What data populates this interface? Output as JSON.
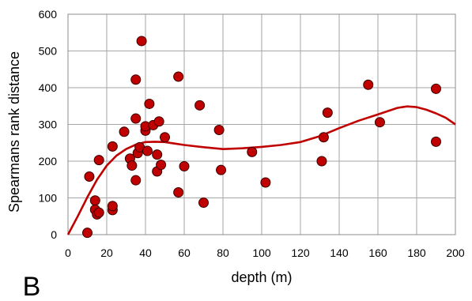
{
  "panel_label": "B",
  "chart_data": {
    "type": "scatter",
    "xlabel": "depth (m)",
    "ylabel": "Spearmans rank distance",
    "xlim": [
      0,
      200
    ],
    "ylim": [
      0,
      600
    ],
    "x_ticks": [
      0,
      20,
      40,
      60,
      80,
      100,
      120,
      140,
      160,
      180,
      200
    ],
    "y_ticks": [
      0,
      100,
      200,
      300,
      400,
      500,
      600
    ],
    "grid": true,
    "legend": "none",
    "marker_color": "#c00000",
    "marker_edge_color": "#3a0000",
    "line_color": "#c00000",
    "points": [
      [
        10,
        5
      ],
      [
        11,
        158
      ],
      [
        14,
        93
      ],
      [
        14,
        68
      ],
      [
        15,
        55
      ],
      [
        16,
        60
      ],
      [
        16,
        203
      ],
      [
        23,
        240
      ],
      [
        23,
        67
      ],
      [
        23,
        78
      ],
      [
        29,
        280
      ],
      [
        32,
        207
      ],
      [
        33,
        188
      ],
      [
        35,
        422
      ],
      [
        35,
        148
      ],
      [
        35,
        316
      ],
      [
        36,
        222
      ],
      [
        37,
        238
      ],
      [
        38,
        527
      ],
      [
        40,
        283
      ],
      [
        40,
        295
      ],
      [
        41,
        228
      ],
      [
        42,
        356
      ],
      [
        44,
        298
      ],
      [
        46,
        218
      ],
      [
        46,
        172
      ],
      [
        47,
        308
      ],
      [
        48,
        190
      ],
      [
        50,
        265
      ],
      [
        57,
        430
      ],
      [
        57,
        115
      ],
      [
        60,
        186
      ],
      [
        68,
        352
      ],
      [
        70,
        87
      ],
      [
        78,
        285
      ],
      [
        79,
        176
      ],
      [
        95,
        225
      ],
      [
        102,
        142
      ],
      [
        131,
        200
      ],
      [
        132,
        265
      ],
      [
        134,
        332
      ],
      [
        155,
        408
      ],
      [
        161,
        306
      ],
      [
        190,
        397
      ],
      [
        190,
        253
      ]
    ],
    "trend_line": {
      "x": [
        0,
        5,
        10,
        15,
        20,
        25,
        30,
        35,
        40,
        45,
        50,
        55,
        60,
        70,
        80,
        90,
        100,
        110,
        120,
        130,
        140,
        150,
        160,
        170,
        175,
        180,
        185,
        190,
        195,
        200
      ],
      "y": [
        0,
        50,
        102,
        150,
        188,
        215,
        233,
        245,
        252,
        253,
        252,
        248,
        244,
        238,
        233,
        235,
        239,
        244,
        252,
        268,
        290,
        310,
        327,
        345,
        349,
        347,
        340,
        330,
        318,
        300
      ]
    }
  }
}
